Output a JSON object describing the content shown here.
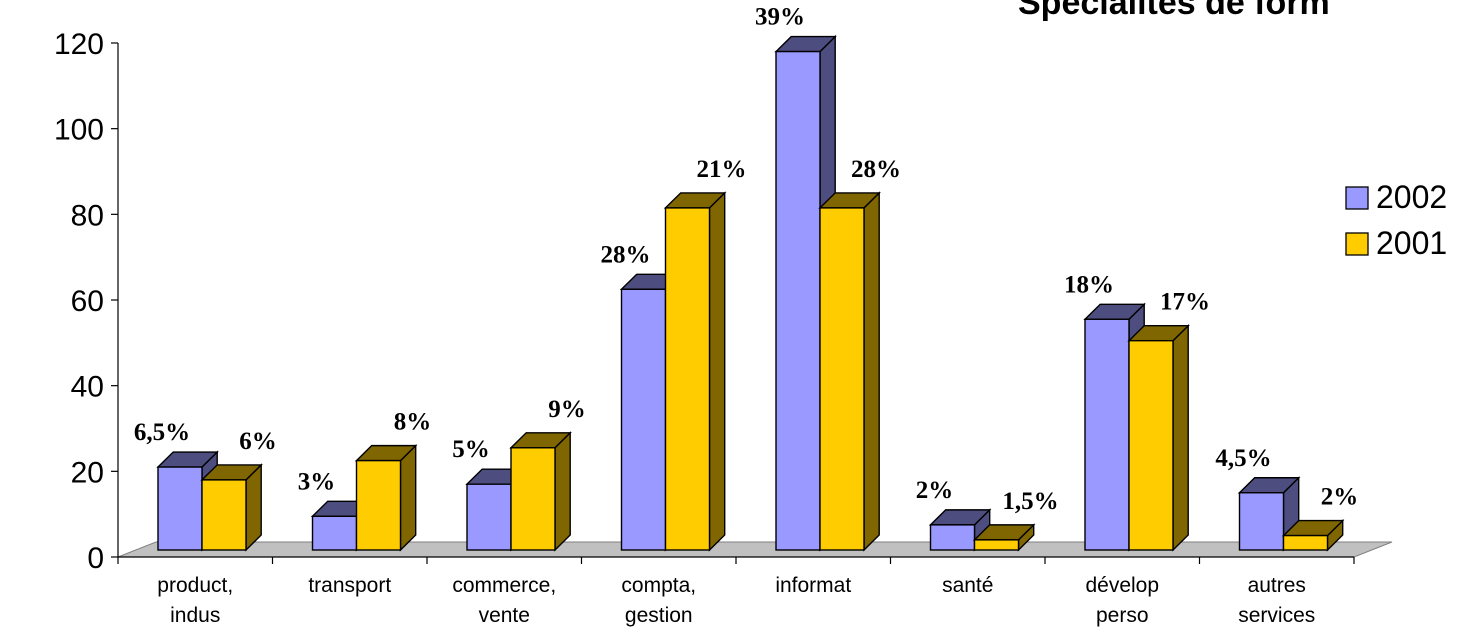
{
  "chart_data": {
    "type": "bar",
    "title": "Spécialités de form",
    "categories": [
      [
        "product,",
        "indus"
      ],
      [
        "transport",
        ""
      ],
      [
        "commerce,",
        "vente"
      ],
      [
        "compta,",
        "gestion"
      ],
      [
        "informat",
        ""
      ],
      [
        "santé",
        ""
      ],
      [
        "dévelop",
        "perso"
      ],
      [
        "autres",
        "services"
      ]
    ],
    "series": [
      {
        "name": "2002",
        "color": "#9999ff",
        "side_color": "#4d4d80",
        "values": [
          21,
          9.5,
          17,
          62.5,
          118,
          7.5,
          55.5,
          15
        ],
        "labels": [
          "6,5%",
          "3%",
          "5%",
          "28%",
          "39%",
          "2%",
          "18%",
          "4,5%"
        ]
      },
      {
        "name": "2001",
        "color": "#ffcc00",
        "side_color": "#806600",
        "values": [
          18,
          22.5,
          25.5,
          81.5,
          81.5,
          4,
          50.5,
          5
        ],
        "labels": [
          "6%",
          "8%",
          "9%",
          "21%",
          "28%",
          "1,5%",
          "17%",
          "2%"
        ]
      }
    ],
    "y_ticks": [
      "0",
      "20",
      "40",
      "60",
      "80",
      "100",
      "120"
    ],
    "ylim": [
      0,
      120
    ],
    "grid": false,
    "legend_position": "right"
  }
}
